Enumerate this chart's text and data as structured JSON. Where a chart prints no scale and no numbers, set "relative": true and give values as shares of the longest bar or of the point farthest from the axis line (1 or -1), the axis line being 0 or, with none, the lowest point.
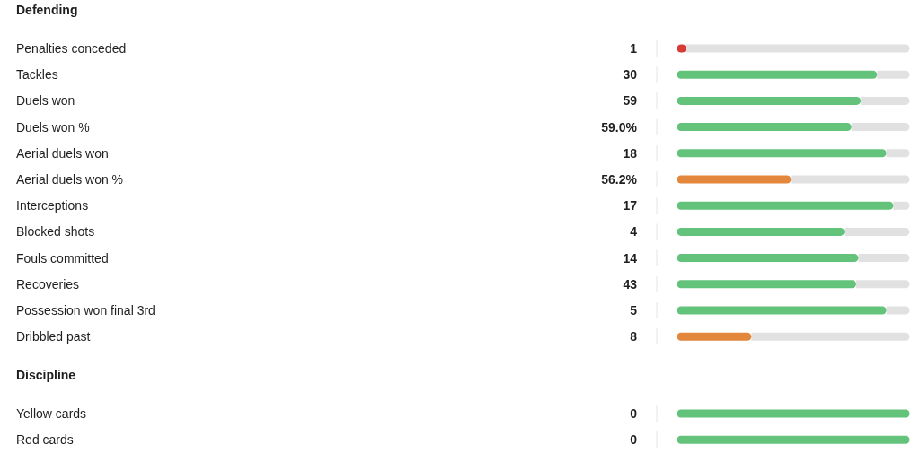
{
  "chart_data": [
    {
      "type": "bar",
      "orientation": "horizontal",
      "stacked": true,
      "relative": true,
      "title": "Defending",
      "categories": [
        "Penalties conceded",
        "Tackles",
        "Duels won",
        "Duels won %",
        "Aerial duels won",
        "Aerial duels won %",
        "Interceptions",
        "Blocked shots",
        "Fouls committed",
        "Recoveries",
        "Possession won final 3rd",
        "Dribbled past"
      ],
      "annotations": [
        "1",
        "30",
        "59",
        "59.0%",
        "18",
        "56.2%",
        "17",
        "4",
        "14",
        "43",
        "5",
        "8"
      ],
      "series": [
        {
          "colors": [
            "#d63b36",
            "#63c37a",
            "#63c37a",
            "#63c37a",
            "#63c37a",
            "#e2873c",
            "#63c37a",
            "#63c37a",
            "#63c37a",
            "#63c37a",
            "#63c37a",
            "#e2873c"
          ],
          "values": [
            0.04,
            0.86,
            0.79,
            0.75,
            0.9,
            0.49,
            0.93,
            0.72,
            0.78,
            0.77,
            0.9,
            0.32
          ]
        },
        {
          "color": "#e1e1e1",
          "values": [
            0.96,
            0.14,
            0.21,
            0.25,
            0.1,
            0.51,
            0.07,
            0.28,
            0.22,
            0.23,
            0.1,
            0.68
          ]
        }
      ]
    },
    {
      "type": "bar",
      "orientation": "horizontal",
      "stacked": true,
      "relative": true,
      "title": "Discipline",
      "categories": [
        "Yellow cards",
        "Red cards"
      ],
      "annotations": [
        "0",
        "0"
      ],
      "series": [
        {
          "colors": [
            "#63c37a",
            "#63c37a"
          ],
          "values": [
            1,
            1
          ]
        }
      ]
    }
  ]
}
